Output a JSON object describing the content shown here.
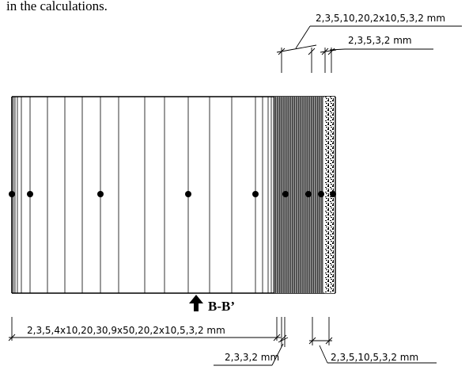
{
  "caption": "in the calculations.",
  "section_label": "B-B’",
  "dims": {
    "top_outer": "2,3,5,10,20,2x10,5,3,2 mm",
    "top_inner": "2,3,5,3,2 mm",
    "bottom_main": "2,3,5,4x10,20,30,9x50,20,2x10,5,3,2 mm",
    "bottom_mid": "2,3,3,2 mm",
    "bottom_right": "2,3,5,10,5,3,2 mm"
  },
  "colors": {
    "ink": "#000000",
    "background": "#ffffff"
  }
}
